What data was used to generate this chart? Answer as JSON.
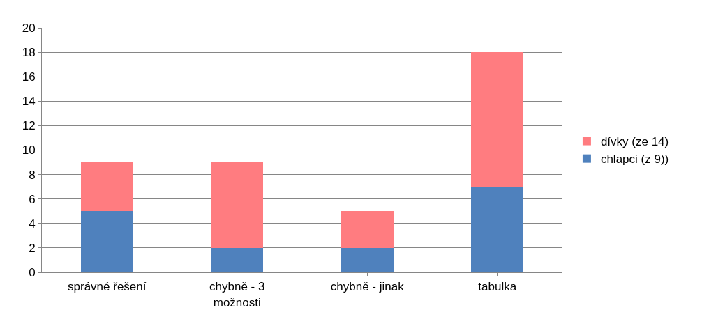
{
  "chart_data": {
    "type": "bar",
    "stacked": true,
    "categories": [
      "správné řešení",
      "chybně - 3 možnosti",
      "chybně - jinak",
      "tabulka"
    ],
    "series": [
      {
        "name": "chlapci (z 9))",
        "color": "#4f81bd",
        "values": [
          5,
          2,
          2,
          7
        ]
      },
      {
        "name": "dívky (ze 14)",
        "color": "#ff7c80",
        "values": [
          4,
          7,
          3,
          11
        ]
      }
    ],
    "ylim": [
      0,
      20
    ],
    "yticks": [
      0,
      2,
      4,
      6,
      8,
      10,
      12,
      14,
      16,
      18,
      20
    ],
    "grid": "y",
    "legend": "right"
  }
}
